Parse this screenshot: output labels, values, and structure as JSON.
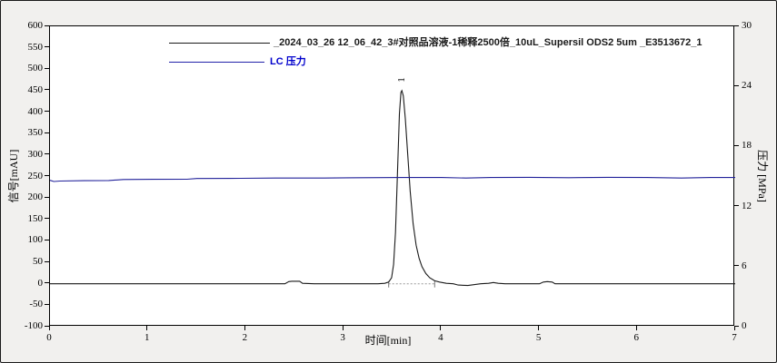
{
  "window": {
    "background_color": "#f1f0ee",
    "plot_background_color": "#ffffff",
    "frame_color": "#000000"
  },
  "legend": {
    "position": "top-center",
    "items": [
      {
        "label": "_2024_03_26 12_06_42_3#对照品溶液-1稀释2500倍_10uL_Supersil ODS2 5um _E3513672_1",
        "color": "#1a1a1a",
        "line_color": "#1a1a1a"
      },
      {
        "label": "LC 压力",
        "color": "#0000cc",
        "line_color": "#2222aa"
      }
    ]
  },
  "chart_data": {
    "type": "line",
    "title": "",
    "xlabel": "时间[min]",
    "ylabel_left": "信号[mAU]",
    "ylabel_right": "压力 [MPa]",
    "x_range": [
      0,
      7
    ],
    "y_left_range": [
      -100,
      600
    ],
    "y_right_range": [
      0,
      30
    ],
    "x_ticks": [
      0,
      1,
      2,
      3,
      4,
      5,
      6,
      7
    ],
    "y_left_ticks": [
      600,
      550,
      500,
      450,
      400,
      350,
      300,
      250,
      200,
      150,
      100,
      50,
      0,
      -50,
      -100
    ],
    "y_right_ticks": [
      30,
      24,
      18,
      12,
      6,
      0
    ],
    "grid": false,
    "series": [
      {
        "name": "_2024_03_26 12_06_42_3#对照品溶液-1稀释2500倍_10uL_Supersil ODS2 5um _E3513672_1",
        "axis": "left",
        "color": "#1a1a1a",
        "width": 1.1,
        "points": [
          [
            0.0,
            0
          ],
          [
            0.5,
            0
          ],
          [
            1.0,
            0
          ],
          [
            1.5,
            0
          ],
          [
            2.0,
            0
          ],
          [
            2.4,
            0
          ],
          [
            2.44,
            5
          ],
          [
            2.47,
            6
          ],
          [
            2.55,
            6
          ],
          [
            2.58,
            1
          ],
          [
            2.7,
            0
          ],
          [
            3.0,
            0
          ],
          [
            3.35,
            0
          ],
          [
            3.42,
            1
          ],
          [
            3.46,
            4
          ],
          [
            3.49,
            14
          ],
          [
            3.51,
            45
          ],
          [
            3.53,
            120
          ],
          [
            3.55,
            260
          ],
          [
            3.57,
            396
          ],
          [
            3.585,
            446
          ],
          [
            3.595,
            450
          ],
          [
            3.61,
            438
          ],
          [
            3.63,
            385
          ],
          [
            3.655,
            300
          ],
          [
            3.68,
            215
          ],
          [
            3.71,
            140
          ],
          [
            3.74,
            90
          ],
          [
            3.77,
            60
          ],
          [
            3.8,
            40
          ],
          [
            3.84,
            24
          ],
          [
            3.88,
            14
          ],
          [
            3.93,
            7
          ],
          [
            3.98,
            4
          ],
          [
            4.05,
            1
          ],
          [
            4.12,
            0
          ],
          [
            4.17,
            -3
          ],
          [
            4.27,
            -4
          ],
          [
            4.33,
            -2
          ],
          [
            4.4,
            0
          ],
          [
            4.48,
            1
          ],
          [
            4.53,
            3
          ],
          [
            4.58,
            1
          ],
          [
            4.65,
            0
          ],
          [
            5.0,
            0
          ],
          [
            5.04,
            4
          ],
          [
            5.08,
            5
          ],
          [
            5.13,
            4
          ],
          [
            5.16,
            0
          ],
          [
            5.5,
            0
          ],
          [
            6.0,
            0
          ],
          [
            6.5,
            0
          ],
          [
            7.0,
            0
          ]
        ]
      },
      {
        "name": "LC 压力",
        "axis": "right",
        "color": "#22229a",
        "width": 1.1,
        "points": [
          [
            0.0,
            14.62
          ],
          [
            0.04,
            14.5
          ],
          [
            0.1,
            14.55
          ],
          [
            0.35,
            14.58
          ],
          [
            0.6,
            14.6
          ],
          [
            0.75,
            14.7
          ],
          [
            1.05,
            14.72
          ],
          [
            1.4,
            14.73
          ],
          [
            1.5,
            14.8
          ],
          [
            1.95,
            14.82
          ],
          [
            2.3,
            14.85
          ],
          [
            2.8,
            14.85
          ],
          [
            3.2,
            14.88
          ],
          [
            3.6,
            14.9
          ],
          [
            4.0,
            14.9
          ],
          [
            4.25,
            14.85
          ],
          [
            4.5,
            14.9
          ],
          [
            4.9,
            14.92
          ],
          [
            5.3,
            14.88
          ],
          [
            5.7,
            14.92
          ],
          [
            6.1,
            14.9
          ],
          [
            6.45,
            14.85
          ],
          [
            6.75,
            14.9
          ],
          [
            7.0,
            14.9
          ]
        ]
      }
    ],
    "peaks": [
      {
        "label": "1",
        "time": 3.59,
        "value": 450
      }
    ],
    "integration": {
      "start_time": 3.46,
      "end_time": 3.93,
      "baseline_value": 0,
      "style": "dotted",
      "color": "#999999"
    }
  }
}
